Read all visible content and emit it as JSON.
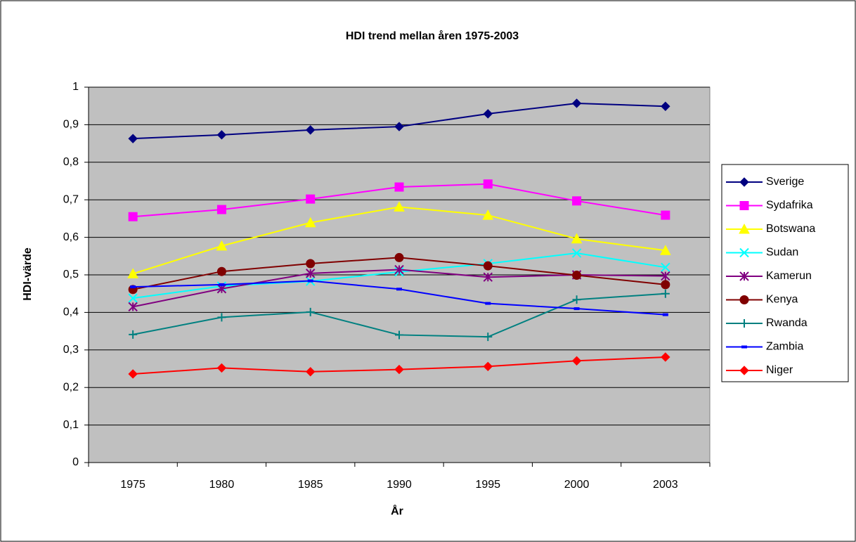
{
  "chart_data": {
    "type": "line",
    "title": "HDI trend mellan åren 1975-2003",
    "x_label": "År",
    "y_label": "HDI-värde",
    "categories": [
      "1975",
      "1980",
      "1985",
      "1990",
      "1995",
      "2000",
      "2003"
    ],
    "ylim": [
      0,
      1
    ],
    "yticks": [
      0,
      {
        "value": 0.1,
        "label": "0,1"
      },
      {
        "value": 0.2,
        "label": "0,2"
      },
      {
        "value": 0.3,
        "label": "0,3"
      },
      {
        "value": 0.4,
        "label": "0,4"
      },
      {
        "value": 0.5,
        "label": "0,5"
      },
      {
        "value": 0.6,
        "label": "0,6"
      },
      {
        "value": 0.7,
        "label": "0,7"
      },
      {
        "value": 0.8,
        "label": "0,8"
      },
      {
        "value": 0.9,
        "label": "0,9"
      },
      1
    ],
    "grid": true,
    "legend": "right",
    "series": [
      {
        "name": "Sverige",
        "color": "#000080",
        "marker": "diamond",
        "values": [
          0.863,
          0.873,
          0.886,
          0.895,
          0.929,
          0.957,
          0.949
        ]
      },
      {
        "name": "Sydafrika",
        "color": "#FF00FF",
        "marker": "square",
        "values": [
          0.655,
          0.674,
          0.702,
          0.734,
          0.742,
          0.697,
          0.659
        ]
      },
      {
        "name": "Botswana",
        "color": "#FFFF00",
        "marker": "triangle",
        "values": [
          0.503,
          0.577,
          0.639,
          0.681,
          0.659,
          0.596,
          0.565
        ]
      },
      {
        "name": "Sudan",
        "color": "#00FFFF",
        "marker": "x",
        "values": [
          0.438,
          0.47,
          0.483,
          0.508,
          0.53,
          0.558,
          0.52
        ]
      },
      {
        "name": "Kamerun",
        "color": "#800080",
        "marker": "star",
        "values": [
          0.415,
          0.463,
          0.504,
          0.514,
          0.494,
          0.5,
          0.497
        ]
      },
      {
        "name": "Kenya",
        "color": "#800000",
        "marker": "circle",
        "values": [
          0.461,
          0.509,
          0.53,
          0.546,
          0.524,
          0.499,
          0.474
        ]
      },
      {
        "name": "Rwanda",
        "color": "#008080",
        "marker": "plus",
        "values": [
          0.341,
          0.387,
          0.401,
          0.34,
          0.335,
          0.434,
          0.45
        ]
      },
      {
        "name": "Zambia",
        "color": "#0000FF",
        "marker": "dash",
        "values": [
          0.468,
          0.474,
          0.484,
          0.462,
          0.424,
          0.41,
          0.394
        ]
      },
      {
        "name": "Niger",
        "color": "#FF0000",
        "marker": "diamond",
        "values": [
          0.236,
          0.252,
          0.242,
          0.248,
          0.256,
          0.271,
          0.281
        ]
      }
    ]
  }
}
